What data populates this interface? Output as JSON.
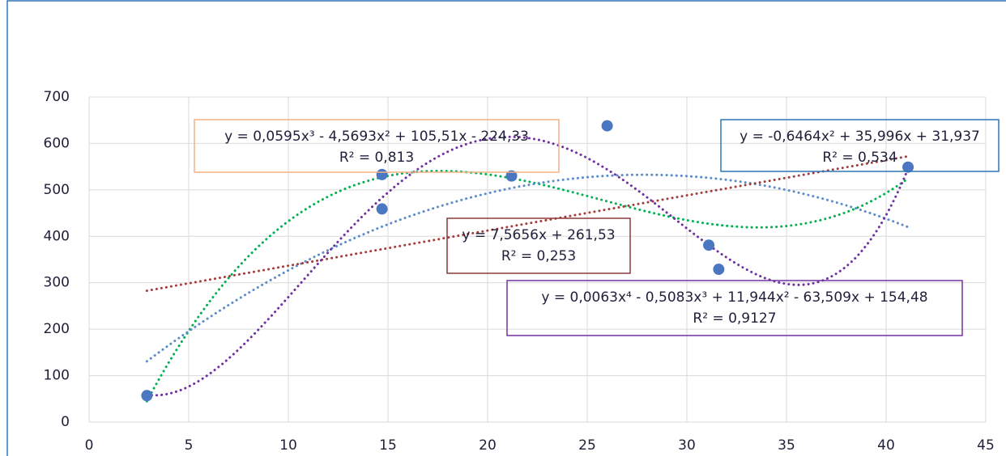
{
  "chart_data": {
    "type": "scatter",
    "x": [
      2.9,
      14.7,
      14.7,
      21.2,
      26,
      31.1,
      31.6,
      41.1
    ],
    "values": [
      57,
      533,
      459,
      530,
      638,
      381,
      329,
      549
    ],
    "color": "#4a76c2",
    "xlim": [
      0,
      45
    ],
    "xticks": [
      0,
      5,
      10,
      15,
      20,
      25,
      30,
      35,
      40,
      45
    ],
    "ylim": [
      0,
      700
    ],
    "yticks": [
      0,
      100,
      200,
      300,
      400,
      500,
      600,
      700
    ],
    "grid": true,
    "trendlines": [
      {
        "order": 3,
        "color": "#00b050",
        "box_color": "#f4b183",
        "equation": "y = 0,0595x³ - 4,5693x² + 105,51x - 224,33",
        "r_squared": "R² = 0,813"
      },
      {
        "order": 2,
        "color": "#5b8bc9",
        "box_color": "#2e75b6",
        "equation": "y = -0,6464x² + 35,996x + 31,937",
        "r_squared": "R² = 0,534"
      },
      {
        "order": 1,
        "color": "#a33b3b",
        "box_color": "#8b3a3a",
        "equation": "y = 7,5656x + 261,53",
        "r_squared": "R² = 0,253"
      },
      {
        "order": 4,
        "color": "#7030a0",
        "box_color": "#7030a0",
        "equation": "y = 0,0063x⁴ - 0,5083x³ + 11,944x² - 63,509x + 154,48",
        "r_squared": "R² = 0,9127"
      }
    ]
  }
}
